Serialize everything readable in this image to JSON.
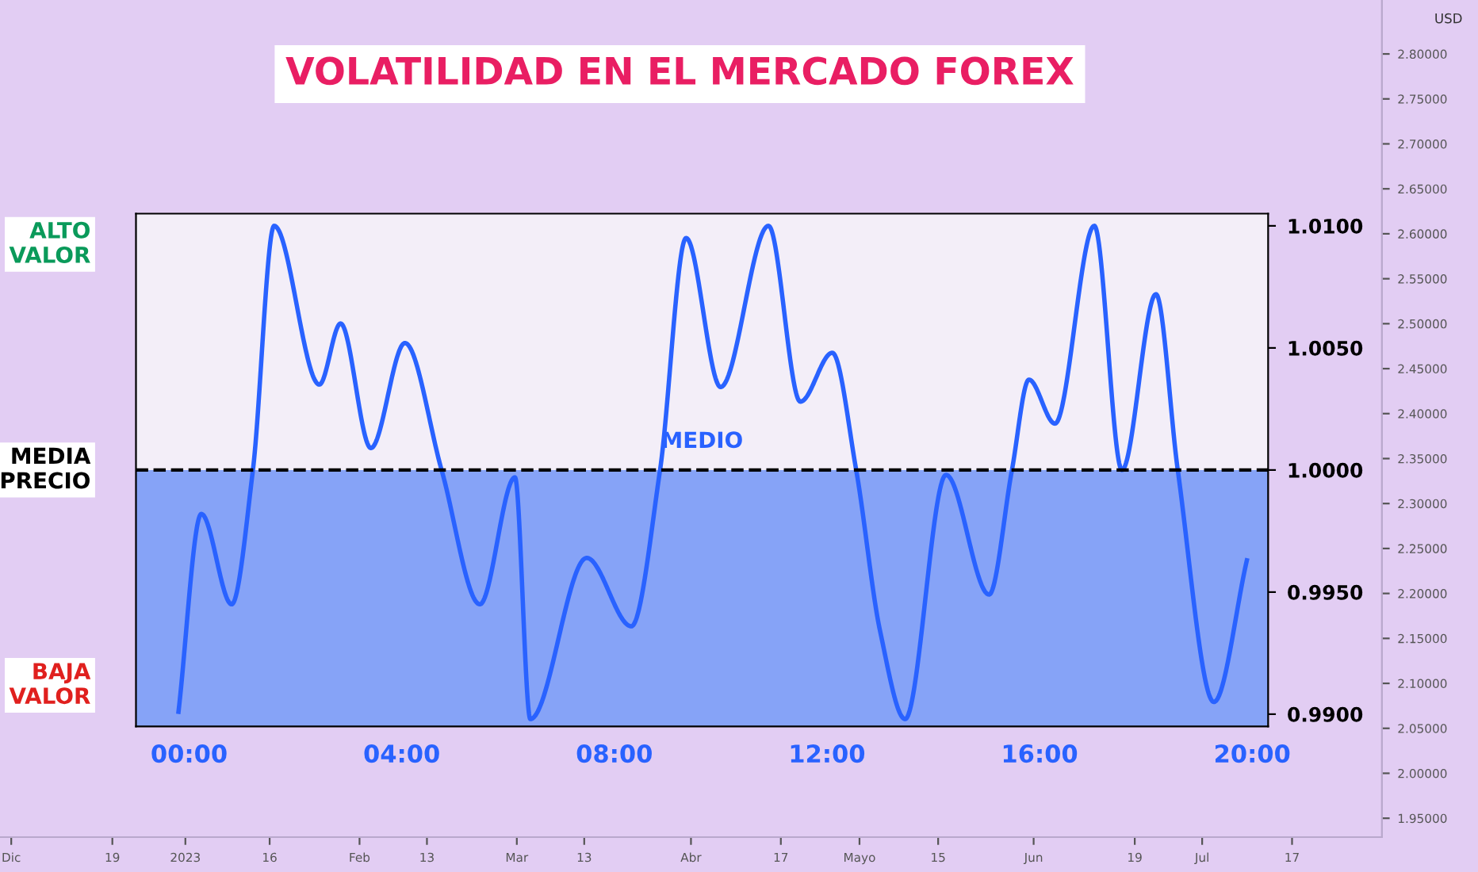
{
  "chart_data": [
    {
      "type": "line",
      "title": "VOLATILIDAD EN EL MERCADO FOREX",
      "x": [
        -0.2,
        0.23,
        0.8,
        1.2,
        1.6,
        2.45,
        2.85,
        3.42,
        4.06,
        4.75,
        5.47,
        6.13,
        6.42,
        7.48,
        8.32,
        8.86,
        9.35,
        10.0,
        10.9,
        11.5,
        12.1,
        12.55,
        13.0,
        13.47,
        14.24,
        15.05,
        15.48,
        15.8,
        16.29,
        17.03,
        17.55,
        18.19,
        18.6,
        19.28,
        19.9
      ],
      "series": [
        {
          "color": "#2962ff",
          "values": [
            0.9901,
            0.9982,
            0.9945,
            1.0,
            1.01,
            1.0035,
            1.006,
            1.0009,
            1.0052,
            1.0,
            0.9945,
            0.9997,
            0.9898,
            0.9964,
            0.9936,
            1.0,
            1.0095,
            1.0034,
            1.01,
            1.0028,
            1.0048,
            1.0,
            0.9934,
            0.9898,
            0.9998,
            0.9949,
            1.0,
            1.0037,
            1.0019,
            1.01,
            1.0,
            1.0072,
            1.0,
            0.9905,
            0.9963
          ]
        }
      ],
      "xlim": [
        -1,
        20.3
      ],
      "ylim": [
        0.9895,
        1.0105
      ],
      "xticks": [
        {
          "value": 0,
          "label": "00:00"
        },
        {
          "value": 4,
          "label": "04:00"
        },
        {
          "value": 8,
          "label": "08:00"
        },
        {
          "value": 12,
          "label": "12:00"
        },
        {
          "value": 16,
          "label": "16:00"
        },
        {
          "value": 20,
          "label": "20:00"
        }
      ],
      "yticks": [
        {
          "value": 0.99,
          "label": "0.9900"
        },
        {
          "value": 0.995,
          "label": "0.9950"
        },
        {
          "value": 1.0,
          "label": "1.0000"
        },
        {
          "value": 1.005,
          "label": "1.0050"
        },
        {
          "value": 1.01,
          "label": "1.0100"
        }
      ],
      "ref_lines": [
        {
          "axis": "y",
          "value": 1.0,
          "label": "MEDIO",
          "color": "#000000",
          "line_style": "dashed"
        }
      ],
      "bands": [
        {
          "axis": "y",
          "from": 1.0,
          "to": 1.0105,
          "color": "#f3eef8"
        },
        {
          "axis": "y",
          "from": 0.9895,
          "to": 1.0,
          "color": "#86a3f7"
        }
      ],
      "annotations": [
        "ALTO\nVALOR",
        "MEDIA\nPRECIO",
        "BAJA\nVALOR"
      ],
      "grid": false,
      "line_style": "solid",
      "marker": "none"
    },
    {
      "type": "line",
      "ylabel": "USD",
      "xlim": [
        "2022-11-29",
        "2023-08-02"
      ],
      "ylim": [
        1.929,
        2.86
      ],
      "xticks": [
        {
          "value": "2022-12-01",
          "label": "Dic"
        },
        {
          "value": "2022-12-19",
          "label": "19"
        },
        {
          "value": "2023-01-01",
          "label": "2023"
        },
        {
          "value": "2023-01-16",
          "label": "16"
        },
        {
          "value": "2023-02-01",
          "label": "Feb"
        },
        {
          "value": "2023-02-13",
          "label": "13"
        },
        {
          "value": "2023-03-01",
          "label": "Mar"
        },
        {
          "value": "2023-03-13",
          "label": "13"
        },
        {
          "value": "2023-04-01",
          "label": "Abr"
        },
        {
          "value": "2023-04-17",
          "label": "17"
        },
        {
          "value": "2023-05-01",
          "label": "Mayo"
        },
        {
          "value": "2023-05-15",
          "label": "15"
        },
        {
          "value": "2023-06-01",
          "label": "Jun"
        },
        {
          "value": "2023-06-19",
          "label": "19"
        },
        {
          "value": "2023-07-01",
          "label": "Jul"
        },
        {
          "value": "2023-07-17",
          "label": "17"
        }
      ],
      "yticks": [
        {
          "value": 1.95,
          "label": "1.95000"
        },
        {
          "value": 2.0,
          "label": "2.00000"
        },
        {
          "value": 2.05,
          "label": "2.05000"
        },
        {
          "value": 2.1,
          "label": "2.10000"
        },
        {
          "value": 2.15,
          "label": "2.15000"
        },
        {
          "value": 2.2,
          "label": "2.20000"
        },
        {
          "value": 2.25,
          "label": "2.25000"
        },
        {
          "value": 2.3,
          "label": "2.30000"
        },
        {
          "value": 2.35,
          "label": "2.35000"
        },
        {
          "value": 2.4,
          "label": "2.40000"
        },
        {
          "value": 2.45,
          "label": "2.45000"
        },
        {
          "value": 2.5,
          "label": "2.50000"
        },
        {
          "value": 2.55,
          "label": "2.55000"
        },
        {
          "value": 2.6,
          "label": "2.60000"
        },
        {
          "value": 2.65,
          "label": "2.65000"
        },
        {
          "value": 2.7,
          "label": "2.70000"
        },
        {
          "value": 2.75,
          "label": "2.75000"
        },
        {
          "value": 2.8,
          "label": "2.80000"
        }
      ],
      "grid": false
    }
  ]
}
